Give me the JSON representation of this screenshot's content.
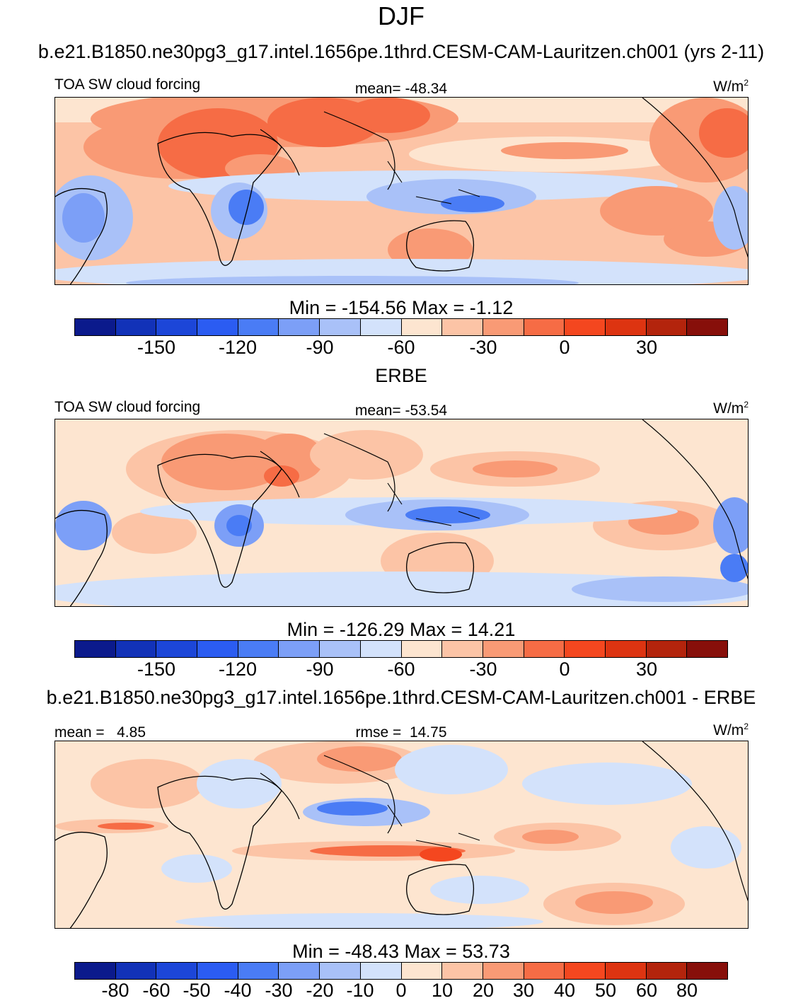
{
  "main_title": "DJF",
  "panels": [
    {
      "title": "b.e21.B1850.ne30pg3_g17.intel.1656pe.1thrd.CESM-CAM-Lauritzen.ch001 (yrs 2-11)",
      "left_label": "TOA SW cloud forcing",
      "center_label": "mean= -48.34",
      "units": "W/m",
      "units_sup": "2",
      "minmax": "Min = -154.56 Max =  -1.12",
      "colorbar": {
        "colors": [
          "#0b1a8c",
          "#1232b8",
          "#1c46d8",
          "#2b5cf2",
          "#4a7cf5",
          "#7c9ff7",
          "#a9c1f8",
          "#d3e2fb",
          "#fde5d0",
          "#fcc4a6",
          "#f99a75",
          "#f66c45",
          "#f4471f",
          "#dd3411",
          "#b3240c",
          "#870f0a"
        ],
        "tick_labels": [
          "-150",
          "-120",
          "-90",
          "-60",
          "-30",
          "0",
          "30"
        ]
      }
    },
    {
      "title": "ERBE",
      "left_label": "TOA SW cloud forcing",
      "center_label": "mean= -53.54",
      "units": "W/m",
      "units_sup": "2",
      "minmax": "Min = -126.29 Max =  14.21",
      "colorbar": {
        "colors": [
          "#0b1a8c",
          "#1232b8",
          "#1c46d8",
          "#2b5cf2",
          "#4a7cf5",
          "#7c9ff7",
          "#a9c1f8",
          "#d3e2fb",
          "#fde5d0",
          "#fcc4a6",
          "#f99a75",
          "#f66c45",
          "#f4471f",
          "#dd3411",
          "#b3240c",
          "#870f0a"
        ],
        "tick_labels": [
          "-150",
          "-120",
          "-90",
          "-60",
          "-30",
          "0",
          "30"
        ]
      }
    },
    {
      "title": "b.e21.B1850.ne30pg3_g17.intel.1656pe.1thrd.CESM-CAM-Lauritzen.ch001 - ERBE",
      "left_label": "mean =   4.85",
      "center_label": "rmse =  14.75",
      "units": "W/m",
      "units_sup": "2",
      "minmax": "Min = -48.43 Max =  53.73",
      "colorbar": {
        "colors": [
          "#0b1a8c",
          "#1232b8",
          "#1c46d8",
          "#2b5cf2",
          "#4a7cf5",
          "#7c9ff7",
          "#a9c1f8",
          "#d3e2fb",
          "#fde5d0",
          "#fcc4a6",
          "#f99a75",
          "#f66c45",
          "#f4471f",
          "#dd3411",
          "#b3240c",
          "#870f0a"
        ],
        "tick_labels": [
          "-80",
          "-60",
          "-50",
          "-40",
          "-30",
          "-20",
          "-10",
          "0",
          "10",
          "20",
          "30",
          "40",
          "50",
          "60",
          "80"
        ]
      }
    }
  ]
}
